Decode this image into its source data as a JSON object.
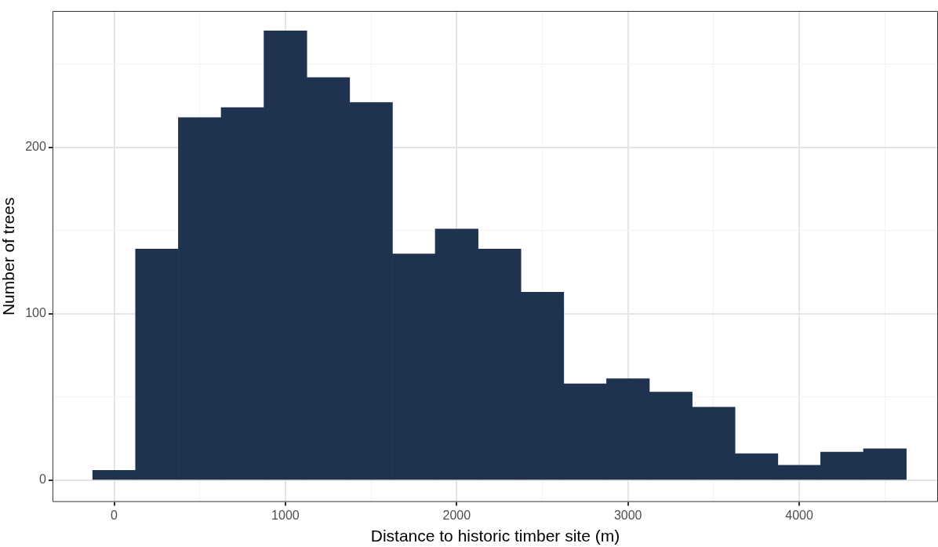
{
  "chart_data": {
    "type": "histogram",
    "xlabel": "Distance to historic timber site (m)",
    "ylabel": "Number of trees",
    "color": "#1f3350",
    "bins": [
      -125,
      125,
      375,
      625,
      875,
      1125,
      1375,
      1625,
      1875,
      2125,
      2375,
      2625,
      2875,
      3125,
      3375,
      3625,
      3875,
      4125,
      4375,
      4625
    ],
    "values": [
      6,
      139,
      218,
      224,
      270,
      242,
      227,
      136,
      151,
      139,
      113,
      58,
      61,
      53,
      44,
      16,
      9,
      17,
      19
    ],
    "xlim": [
      -360,
      4810
    ],
    "xticks": [
      0,
      {
        "value": 500,
        "label": null
      },
      1000,
      {
        "value": 1500,
        "label": null
      },
      2000,
      {
        "value": 2500,
        "label": null
      },
      3000,
      {
        "value": 3500,
        "label": null
      },
      4000,
      {
        "value": 4500,
        "label": null
      }
    ],
    "ylim": [
      -13,
      282
    ],
    "yticks": [
      0,
      {
        "value": 50,
        "label": null
      },
      100,
      {
        "value": 150,
        "label": null
      },
      200,
      {
        "value": 250,
        "label": null
      }
    ],
    "grid": true
  }
}
